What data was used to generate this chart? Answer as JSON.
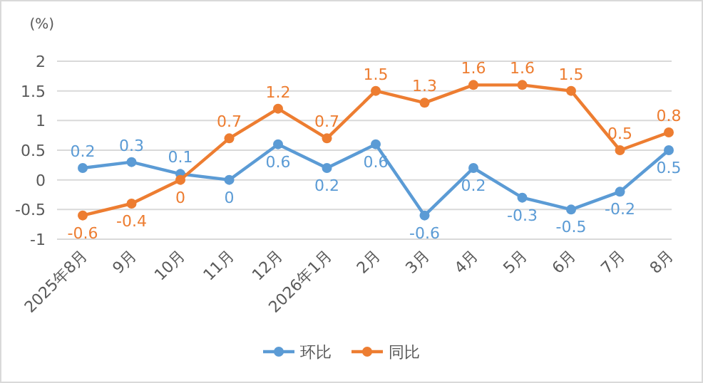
{
  "chart_data": {
    "type": "line",
    "ylabel": "(%)",
    "categories": [
      "2025年8月",
      "9月",
      "10月",
      "11月",
      "12月",
      "2026年1月",
      "2月",
      "3月",
      "4月",
      "5月",
      "6月",
      "7月",
      "8月"
    ],
    "series": [
      {
        "name": "环比",
        "color": "#5b9bd5",
        "values": [
          0.2,
          0.3,
          0.1,
          0,
          0.6,
          0.2,
          0.6,
          -0.6,
          0.2,
          -0.3,
          -0.5,
          -0.2,
          0.5
        ]
      },
      {
        "name": "同比",
        "color": "#ed7d31",
        "values": [
          -0.6,
          -0.4,
          0,
          0.7,
          1.2,
          0.7,
          1.5,
          1.3,
          1.6,
          1.6,
          1.5,
          0.5,
          0.8
        ]
      }
    ],
    "ylim": [
      -1,
      2
    ],
    "yticks": [
      -1,
      -0.5,
      0,
      0.5,
      1,
      1.5,
      2
    ],
    "grid": "y",
    "legend": "bottom",
    "marker": "circle",
    "line_style": "solid",
    "data_labels": true
  }
}
